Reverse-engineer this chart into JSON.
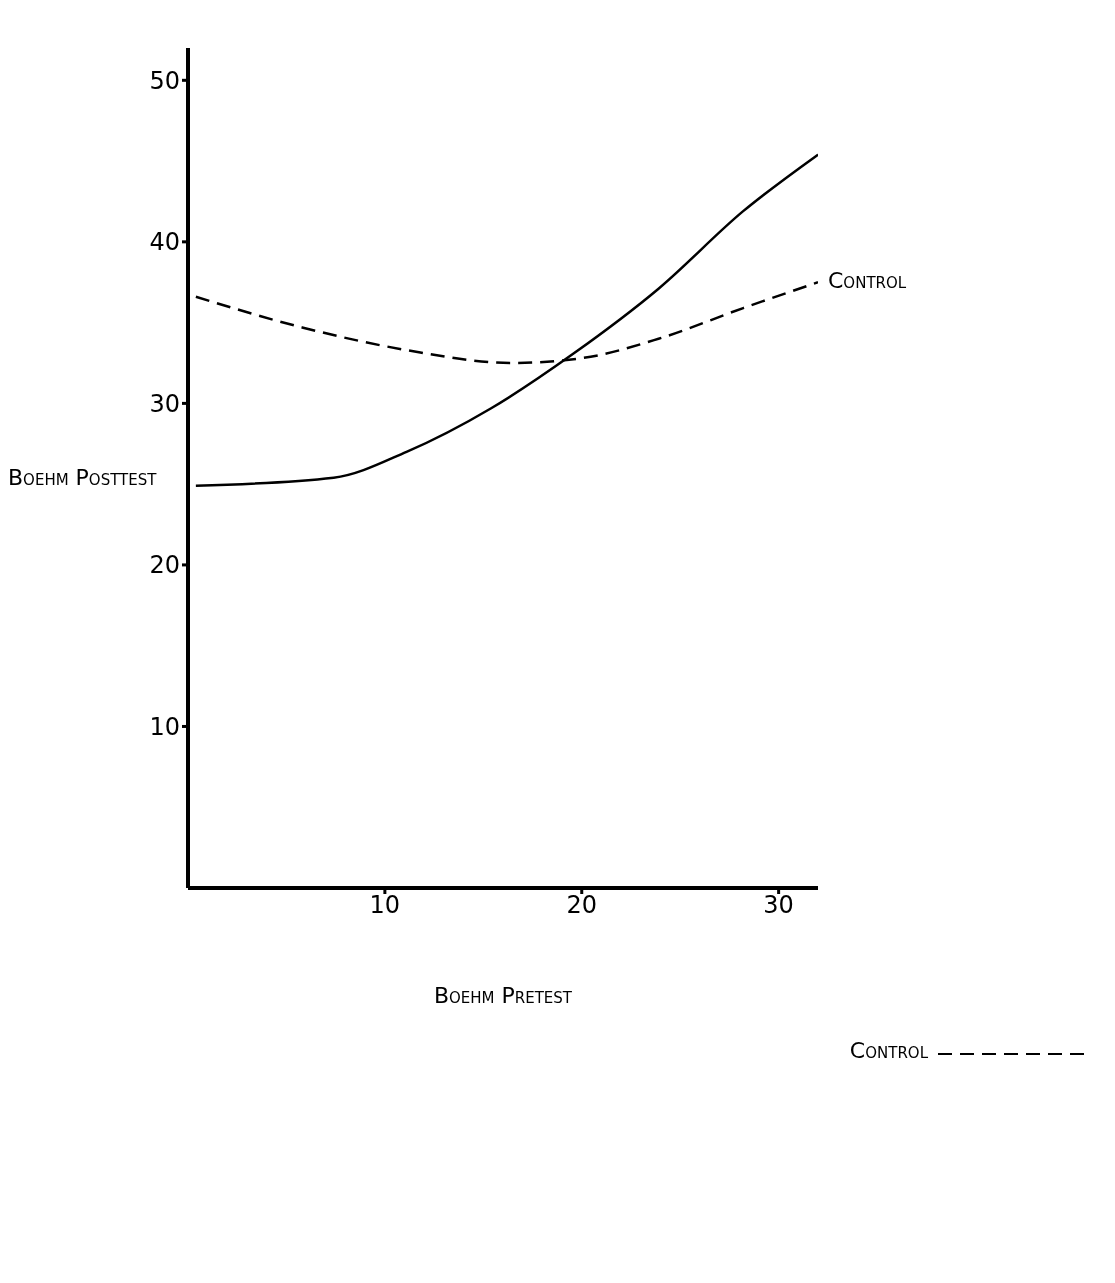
{
  "chart_data": {
    "type": "line",
    "xlabel": "Boehm Pretest",
    "ylabel": "Boehm Posttest",
    "xlim": [
      0,
      32
    ],
    "ylim": [
      0,
      52
    ],
    "xticks": [
      10,
      20,
      30
    ],
    "yticks": [
      10,
      20,
      30,
      40,
      50
    ],
    "grid": false,
    "legend": "bottom right",
    "annotations": [
      {
        "text": "Control",
        "x": 32,
        "y": 37.5
      }
    ],
    "marker": "none",
    "series": [
      {
        "color": "#000000",
        "line_style": "solid",
        "x": [
          0.4,
          7.4,
          11.1,
          15.4,
          19.6,
          23.9,
          28.2,
          32
        ],
        "values": [
          24.9,
          25.4,
          27,
          29.7,
          33.1,
          37.1,
          41.9,
          45.4
        ]
      },
      {
        "name": "Control",
        "color": "#000000",
        "line_style": "dashed",
        "x": [
          0.4,
          5.8,
          11.1,
          16.4,
          20,
          23.9,
          28.2,
          32
        ],
        "values": [
          36.6,
          34.7,
          33.3,
          32.5,
          32.8,
          34,
          35.9,
          37.5
        ]
      }
    ]
  }
}
